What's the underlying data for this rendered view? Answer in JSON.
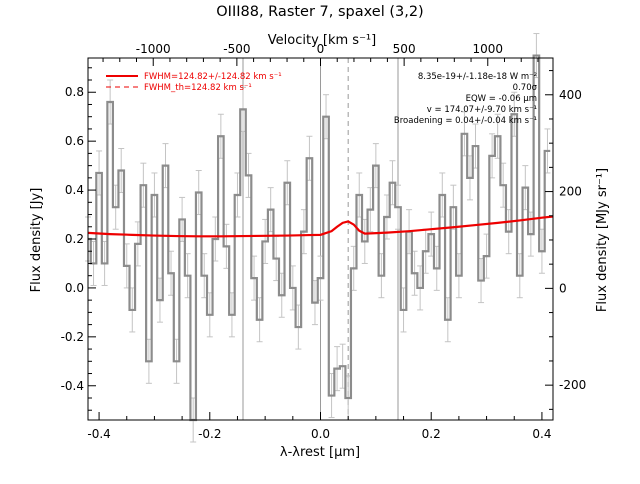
{
  "chart_data": {
    "type": "line",
    "title": "OIII88, Raster 7, spaxel (3,2)",
    "xlabel": "λ-λrest [μm]",
    "ylabel": "Flux density [Jy]",
    "ylabel_right": "Flux density [MJy sr⁻¹]",
    "xlabel_top": "Velocity [km s⁻¹]",
    "xlim": [
      -0.42,
      0.42
    ],
    "ylim": [
      -0.54,
      0.94
    ],
    "top_axis_lim": [
      -1390,
      1390
    ],
    "right_axis_lim": [
      -272,
      476
    ],
    "x_ticks": [
      -0.4,
      -0.2,
      0.0,
      0.2,
      0.4
    ],
    "x_tick_labels": [
      "-0.4",
      "-0.2",
      "0.0",
      "0.2",
      "0.4"
    ],
    "y_ticks": [
      -0.4,
      -0.2,
      0.0,
      0.2,
      0.4,
      0.6,
      0.8
    ],
    "y_tick_labels": [
      "-0.4",
      "-0.2",
      "0.0",
      "0.2",
      "0.4",
      "0.6",
      "0.8"
    ],
    "top_ticks": [
      -1000,
      -500,
      0,
      500,
      1000
    ],
    "top_tick_labels": [
      "-1000",
      "-500",
      "0",
      "500",
      "1000"
    ],
    "right_ticks": [
      -200,
      0,
      200,
      400
    ],
    "right_tick_labels": [
      "-200",
      "0",
      "200",
      "400"
    ],
    "vertical_lines_solid": [
      -0.14,
      0.0,
      0.14
    ],
    "vertical_line_dashed": 0.05,
    "legend": [
      {
        "label": "FWHM=124.82+/-124.82 km s⁻¹",
        "style": "solid"
      },
      {
        "label": "FWHM_th=124.82 km s⁻¹",
        "style": "dashed"
      }
    ],
    "annotations": [
      "8.35e-19+/-1.18e-18 W m⁻²",
      "0.70σ",
      "EQW = -0.06 μm",
      "v = 174.07+/-9.70 km s⁻¹",
      "Broadening = 0.04+/-0.04 km s⁻¹"
    ],
    "colors": {
      "data": "#8c8c8c",
      "error": "#c4c4c4",
      "fit": "#ee0000",
      "axis": "#000000"
    },
    "series": [
      {
        "style": "histogram",
        "x": [
          -0.42,
          -0.41,
          -0.4,
          -0.39,
          -0.38,
          -0.37,
          -0.36,
          -0.35,
          -0.34,
          -0.33,
          -0.32,
          -0.31,
          -0.3,
          -0.29,
          -0.28,
          -0.27,
          -0.26,
          -0.25,
          -0.24,
          -0.23,
          -0.22,
          -0.21,
          -0.2,
          -0.19,
          -0.18,
          -0.17,
          -0.16,
          -0.15,
          -0.14,
          -0.13,
          -0.12,
          -0.11,
          -0.1,
          -0.09,
          -0.08,
          -0.07,
          -0.06,
          -0.05,
          -0.04,
          -0.03,
          -0.02,
          -0.01,
          0.0,
          0.01,
          0.02,
          0.03,
          0.04,
          0.05,
          0.06,
          0.07,
          0.08,
          0.09,
          0.1,
          0.11,
          0.12,
          0.13,
          0.14,
          0.15,
          0.16,
          0.17,
          0.18,
          0.19,
          0.2,
          0.21,
          0.22,
          0.23,
          0.24,
          0.25,
          0.26,
          0.27,
          0.28,
          0.29,
          0.3,
          0.31,
          0.32,
          0.33,
          0.34,
          0.35,
          0.36,
          0.37,
          0.38,
          0.39,
          0.4,
          0.41
        ],
        "y": [
          0.2,
          0.1,
          0.47,
          0.1,
          0.76,
          0.33,
          0.48,
          0.09,
          -0.09,
          0.18,
          0.42,
          -0.3,
          0.38,
          -0.05,
          0.5,
          0.06,
          -0.3,
          0.28,
          0.05,
          -0.54,
          0.39,
          0.05,
          -0.11,
          0.2,
          0.62,
          0.17,
          -0.11,
          0.38,
          0.73,
          0.46,
          0.04,
          -0.13,
          0.19,
          0.32,
          0.12,
          -0.03,
          0.43,
          0.0,
          -0.16,
          0.23,
          0.53,
          -0.06,
          0.04,
          0.7,
          -0.44,
          -0.33,
          -0.32,
          -0.45,
          0.08,
          0.38,
          0.19,
          0.32,
          0.5,
          0.05,
          0.29,
          0.43,
          0.33,
          -0.09,
          0.23,
          0.06,
          0.0,
          0.15,
          0.22,
          0.08,
          0.38,
          -0.13,
          0.33,
          0.05,
          0.63,
          0.45,
          0.58,
          0.03,
          0.13,
          0.54,
          0.62,
          0.42,
          0.23,
          0.71,
          0.05,
          0.41,
          0.22,
          0.95,
          0.15,
          0.56
        ],
        "yerr": 0.09
      },
      {
        "name": "FWHM=124.82+/-124.82 km s⁻¹",
        "style": "fit",
        "x": [
          -0.42,
          -0.38,
          -0.34,
          -0.3,
          -0.26,
          -0.22,
          -0.18,
          -0.14,
          -0.1,
          -0.06,
          -0.02,
          0.0,
          0.02,
          0.03,
          0.04,
          0.05,
          0.06,
          0.07,
          0.08,
          0.12,
          0.16,
          0.2,
          0.24,
          0.28,
          0.32,
          0.36,
          0.4,
          0.42
        ],
        "y": [
          0.225,
          0.22,
          0.217,
          0.214,
          0.212,
          0.211,
          0.211,
          0.212,
          0.213,
          0.214,
          0.216,
          0.217,
          0.232,
          0.25,
          0.266,
          0.272,
          0.259,
          0.234,
          0.222,
          0.226,
          0.232,
          0.24,
          0.248,
          0.257,
          0.266,
          0.276,
          0.287,
          0.292
        ]
      }
    ]
  }
}
